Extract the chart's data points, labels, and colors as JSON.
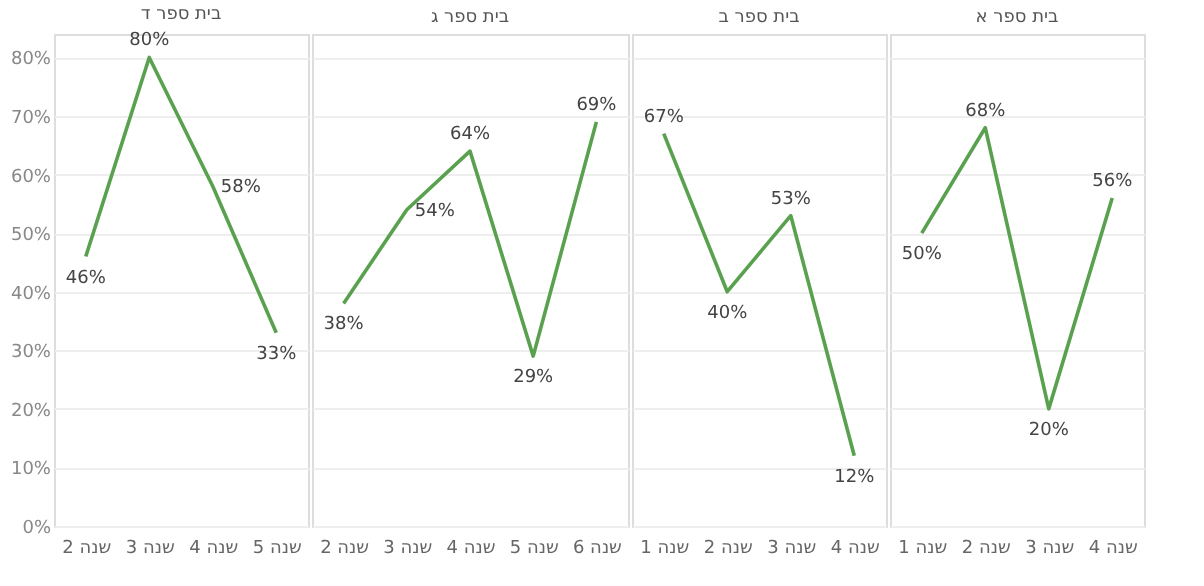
{
  "chart_data": [
    {
      "type": "line",
      "title": "בית ספר ד",
      "categories": [
        "שנה 2",
        "שנה 3",
        "שנה 4",
        "שנה 5"
      ],
      "series": [
        {
          "color": "#59a14f",
          "values": [
            46,
            80,
            58,
            33
          ]
        }
      ],
      "value_labels": [
        "46%",
        "80%",
        "58%",
        "33%"
      ],
      "ylim": [
        0,
        84
      ],
      "yticks": [
        {
          "value": 0,
          "label": "0%"
        },
        {
          "value": 10,
          "label": "10%"
        },
        {
          "value": 20,
          "label": "20%"
        },
        {
          "value": 30,
          "label": "30%"
        },
        {
          "value": 40,
          "label": "40%"
        },
        {
          "value": 50,
          "label": "50%"
        },
        {
          "value": 60,
          "label": "60%"
        },
        {
          "value": 70,
          "label": "70%"
        },
        {
          "value": 80,
          "label": "80%"
        }
      ],
      "grid": "y"
    },
    {
      "type": "line",
      "title": "בית ספר ג",
      "categories": [
        "שנה 2",
        "שנה 3",
        "שנה 4",
        "שנה 5",
        "שנה 6"
      ],
      "series": [
        {
          "color": "#59a14f",
          "values": [
            38,
            54,
            64,
            29,
            69
          ]
        }
      ],
      "value_labels": [
        "38%",
        "54%",
        "64%",
        "29%",
        "69%"
      ],
      "ylim": [
        0,
        84
      ],
      "yticks": [
        0,
        10,
        20,
        30,
        40,
        50,
        60,
        70,
        80
      ],
      "tick_labels": "x",
      "grid": "y"
    },
    {
      "type": "line",
      "title": "בית ספר ב",
      "categories": [
        "שנה 1",
        "שנה 2",
        "שנה 3",
        "שנה 4"
      ],
      "series": [
        {
          "color": "#59a14f",
          "values": [
            67,
            40,
            53,
            12
          ]
        }
      ],
      "value_labels": [
        "67%",
        "40%",
        "53%",
        "12%"
      ],
      "ylim": [
        0,
        84
      ],
      "yticks": [
        0,
        10,
        20,
        30,
        40,
        50,
        60,
        70,
        80
      ],
      "tick_labels": "x",
      "grid": "y"
    },
    {
      "type": "line",
      "title": "בית ספר א",
      "categories": [
        "שנה 1",
        "שנה 2",
        "שנה 3",
        "שנה 4"
      ],
      "series": [
        {
          "color": "#59a14f",
          "values": [
            50,
            68,
            20,
            56
          ]
        }
      ],
      "value_labels": [
        "50%",
        "68%",
        "20%",
        "56%"
      ],
      "ylim": [
        0,
        84
      ],
      "yticks": [
        0,
        10,
        20,
        30,
        40,
        50,
        60,
        70,
        80
      ],
      "tick_labels": "x",
      "grid": "y"
    }
  ]
}
